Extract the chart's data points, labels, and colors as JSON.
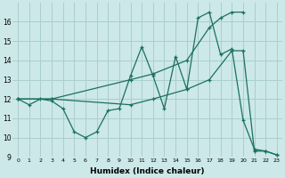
{
  "xlabel": "Humidex (Indice chaleur)",
  "bg_color": "#cce8e8",
  "grid_color": "#aacece",
  "line_color": "#1a7060",
  "ylim": [
    9,
    17
  ],
  "xlim": [
    -0.5,
    23.5
  ],
  "yticks": [
    9,
    10,
    11,
    12,
    13,
    14,
    15,
    16
  ],
  "xticks": [
    0,
    1,
    2,
    3,
    4,
    5,
    6,
    7,
    8,
    9,
    10,
    11,
    12,
    13,
    14,
    15,
    16,
    17,
    18,
    19,
    20,
    21,
    22,
    23
  ],
  "series": [
    {
      "x": [
        0,
        1,
        2,
        3,
        4,
        5,
        6,
        7,
        8,
        9,
        10,
        11,
        12,
        13,
        14,
        15,
        16,
        17,
        18,
        19,
        20,
        21,
        22,
        23
      ],
      "y": [
        12,
        11.7,
        12,
        11.9,
        11.5,
        10.3,
        10.0,
        10.3,
        11.4,
        11.5,
        13.2,
        14.7,
        13.2,
        11.5,
        14.2,
        12.5,
        16.2,
        16.5,
        14.3,
        14.6,
        10.9,
        9.4,
        9.3,
        9.1
      ]
    },
    {
      "x": [
        0,
        3,
        10,
        12,
        15,
        17,
        18,
        19,
        20
      ],
      "y": [
        12,
        12,
        13.0,
        13.3,
        14.0,
        15.7,
        16.2,
        16.5,
        16.5
      ]
    },
    {
      "x": [
        0,
        3,
        10,
        12,
        15,
        17,
        19,
        20,
        21,
        22,
        23
      ],
      "y": [
        12,
        12,
        11.7,
        12.0,
        12.5,
        13.0,
        14.5,
        14.5,
        9.3,
        9.3,
        9.1
      ]
    }
  ]
}
